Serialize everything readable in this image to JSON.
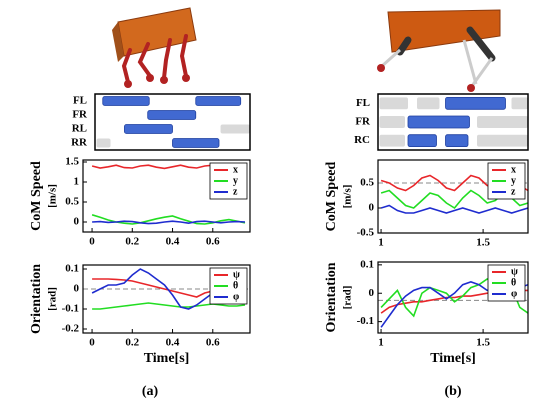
{
  "captions": [
    "(a)",
    "(b)"
  ],
  "chart_data": [
    {
      "type": "gait",
      "xlim": [
        0,
        1
      ],
      "color": "#4169d1",
      "shaded_color": "#d9d9d9",
      "rows": [
        {
          "label": "FL",
          "segments": [
            [
              0.05,
              0.35
            ],
            [
              0.65,
              0.94
            ]
          ],
          "shaded": []
        },
        {
          "label": "FR",
          "segments": [
            [
              0.34,
              0.65
            ]
          ],
          "shaded": []
        },
        {
          "label": "RL",
          "segments": [
            [
              0.19,
              0.5
            ]
          ],
          "shaded": [
            [
              0.81,
              1.0
            ]
          ]
        },
        {
          "label": "RR",
          "segments": [
            [
              0.5,
              0.8
            ]
          ],
          "shaded": [
            [
              0.01,
              0.1
            ]
          ]
        }
      ]
    },
    {
      "type": "line",
      "ylabel": [
        "CoM Speed",
        "[m/s]"
      ],
      "legend": "upper right",
      "xlim": [
        -0.045,
        0.785
      ],
      "xticks": [
        0,
        0.2,
        0.4,
        0.6
      ],
      "ylim": [
        -0.25,
        1.55
      ],
      "yticks": [
        0,
        0.5,
        1,
        1.5
      ],
      "x": [
        0,
        0.04,
        0.08,
        0.12,
        0.16,
        0.2,
        0.24,
        0.28,
        0.32,
        0.36,
        0.4,
        0.44,
        0.48,
        0.52,
        0.56,
        0.6,
        0.64,
        0.68,
        0.72,
        0.76
      ],
      "series": [
        {
          "name": "x",
          "color": "#e8262a",
          "values": [
            1.4,
            1.35,
            1.38,
            1.42,
            1.36,
            1.35,
            1.4,
            1.42,
            1.37,
            1.34,
            1.38,
            1.42,
            1.37,
            1.35,
            1.4,
            1.42,
            1.37,
            1.35,
            1.39,
            1.41
          ]
        },
        {
          "name": "y",
          "color": "#22dd22",
          "values": [
            0.18,
            0.12,
            0.05,
            0,
            -0.03,
            -0.05,
            -0.02,
            0.03,
            0.08,
            0.12,
            0.15,
            0.08,
            0.02,
            -0.04,
            -0.05,
            -0.02,
            0.03,
            0.06,
            0.02,
            -0.02
          ]
        },
        {
          "name": "z",
          "color": "#1f2ccf",
          "values": [
            0,
            0.01,
            -0.01,
            0,
            0.02,
            0.01,
            -0.02,
            -0.04,
            -0.03,
            0,
            0.02,
            0,
            -0.03,
            0.01,
            0.02,
            0,
            -0.02,
            0,
            0.01,
            0
          ]
        }
      ]
    },
    {
      "type": "line",
      "ylabel": [
        "Orientation",
        "[rad]"
      ],
      "xlabel": "Time[s]",
      "legend": "upper right",
      "hline": 0,
      "xlim": [
        -0.045,
        0.785
      ],
      "xticks": [
        0,
        0.2,
        0.4,
        0.6
      ],
      "ylim": [
        -0.22,
        0.12
      ],
      "yticks": [
        0.1,
        0,
        -0.1,
        -0.2
      ],
      "x": [
        0,
        0.04,
        0.08,
        0.12,
        0.16,
        0.2,
        0.24,
        0.28,
        0.32,
        0.36,
        0.4,
        0.44,
        0.48,
        0.52,
        0.56,
        0.6,
        0.64,
        0.68,
        0.72,
        0.76
      ],
      "series": [
        {
          "name": "ψ",
          "color": "#e8262a",
          "values": [
            0.05,
            0.05,
            0.05,
            0.048,
            0.045,
            0.04,
            0.03,
            0.02,
            0.01,
            0,
            -0.01,
            -0.02,
            -0.03,
            -0.04,
            -0.02,
            -0.01,
            0,
            0,
            0,
            0.01
          ]
        },
        {
          "name": "θ",
          "color": "#22dd22",
          "values": [
            -0.1,
            -0.1,
            -0.095,
            -0.09,
            -0.085,
            -0.08,
            -0.075,
            -0.07,
            -0.075,
            -0.08,
            -0.085,
            -0.09,
            -0.09,
            -0.085,
            -0.08,
            -0.075,
            -0.08,
            -0.085,
            -0.085,
            -0.08
          ]
        },
        {
          "name": "φ",
          "color": "#1f2ccf",
          "values": [
            -0.02,
            0,
            0.02,
            0.02,
            0.03,
            0.07,
            0.1,
            0.08,
            0.05,
            0.02,
            -0.03,
            -0.09,
            -0.1,
            -0.08,
            -0.05,
            -0.02,
            0.01,
            0.02,
            0.02,
            0.03
          ]
        }
      ]
    },
    {
      "type": "gait",
      "xlim": [
        0,
        1
      ],
      "color": "#4169d1",
      "shaded_color": "#d9d9d9",
      "rows": [
        {
          "label": "FL",
          "segments": [
            [
              0.45,
              0.85
            ]
          ],
          "shaded": [
            [
              0.01,
              0.2
            ],
            [
              0.26,
              0.41
            ],
            [
              0.89,
              1.0
            ]
          ]
        },
        {
          "label": "FR",
          "segments": [
            [
              0.2,
              0.61
            ]
          ],
          "shaded": [
            [
              0.01,
              0.18
            ],
            [
              0.66,
              1.0
            ]
          ]
        },
        {
          "label": "RC",
          "segments": [
            [
              0.2,
              0.39
            ],
            [
              0.45,
              0.6
            ]
          ],
          "shaded": [
            [
              0.01,
              0.18
            ],
            [
              0.66,
              1.0
            ]
          ]
        }
      ]
    },
    {
      "type": "line",
      "ylabel": [
        "CoM Speed",
        "[m/s]"
      ],
      "legend": "upper right",
      "hline": 0.5,
      "xlim": [
        0.985,
        1.72
      ],
      "xticks": [
        1,
        1.5
      ],
      "ylim": [
        -0.5,
        0.96
      ],
      "yticks": [
        -0.5,
        0,
        0.5
      ],
      "x": [
        1,
        1.04,
        1.08,
        1.12,
        1.16,
        1.2,
        1.24,
        1.28,
        1.32,
        1.36,
        1.4,
        1.44,
        1.48,
        1.52,
        1.56,
        1.6,
        1.64,
        1.68,
        1.72
      ],
      "series": [
        {
          "name": "x",
          "color": "#e8262a",
          "values": [
            0.55,
            0.5,
            0.4,
            0.35,
            0.45,
            0.6,
            0.65,
            0.55,
            0.4,
            0.35,
            0.5,
            0.65,
            0.6,
            0.45,
            0.4,
            0.5,
            0.6,
            0.45,
            0.35
          ]
        },
        {
          "name": "y",
          "color": "#22dd22",
          "values": [
            0.3,
            0.35,
            0.2,
            0.05,
            0,
            0.15,
            0.3,
            0.25,
            0.1,
            0,
            0.2,
            0.35,
            0.25,
            0.1,
            0.15,
            0.3,
            0.2,
            0.05,
            0.1
          ]
        },
        {
          "name": "z",
          "color": "#1f2ccf",
          "values": [
            0,
            0.05,
            -0.05,
            -0.1,
            -0.1,
            -0.05,
            0,
            -0.05,
            -0.1,
            -0.05,
            0,
            -0.05,
            -0.1,
            -0.05,
            0,
            -0.05,
            -0.1,
            -0.05,
            0
          ]
        }
      ]
    },
    {
      "type": "line",
      "ylabel": [
        "Orientation",
        "[rad]"
      ],
      "xlabel": "Time[s]",
      "legend": "upper right",
      "hline": -0.025,
      "xlim": [
        0.985,
        1.72
      ],
      "xticks": [
        1,
        1.5
      ],
      "ylim": [
        -0.14,
        0.11
      ],
      "yticks": [
        0.1,
        0,
        -0.1
      ],
      "x": [
        1,
        1.04,
        1.08,
        1.12,
        1.16,
        1.2,
        1.24,
        1.28,
        1.32,
        1.36,
        1.4,
        1.44,
        1.48,
        1.52,
        1.56,
        1.6,
        1.64,
        1.68,
        1.72
      ],
      "series": [
        {
          "name": "ψ",
          "color": "#e8262a",
          "values": [
            -0.07,
            -0.05,
            -0.04,
            -0.035,
            -0.03,
            -0.03,
            -0.025,
            -0.02,
            -0.015,
            -0.015,
            -0.01,
            -0.01,
            -0.005,
            0,
            0,
            0.005,
            0.005,
            0.01,
            0.01
          ]
        },
        {
          "name": "θ",
          "color": "#22dd22",
          "values": [
            -0.05,
            -0.02,
            0.01,
            -0.05,
            -0.08,
            0,
            0.02,
            0.01,
            0,
            -0.03,
            -0.01,
            0.02,
            0.03,
            0.05,
            0.03,
            -0.01,
            0.02,
            -0.05,
            -0.07
          ]
        },
        {
          "name": "φ",
          "color": "#1f2ccf",
          "values": [
            -0.12,
            -0.08,
            -0.04,
            -0.01,
            0.01,
            0.02,
            0.02,
            0,
            -0.02,
            0,
            0.03,
            0.04,
            0.03,
            0.01,
            0.02,
            0.04,
            0.03,
            0.02,
            0.03
          ]
        }
      ]
    }
  ]
}
